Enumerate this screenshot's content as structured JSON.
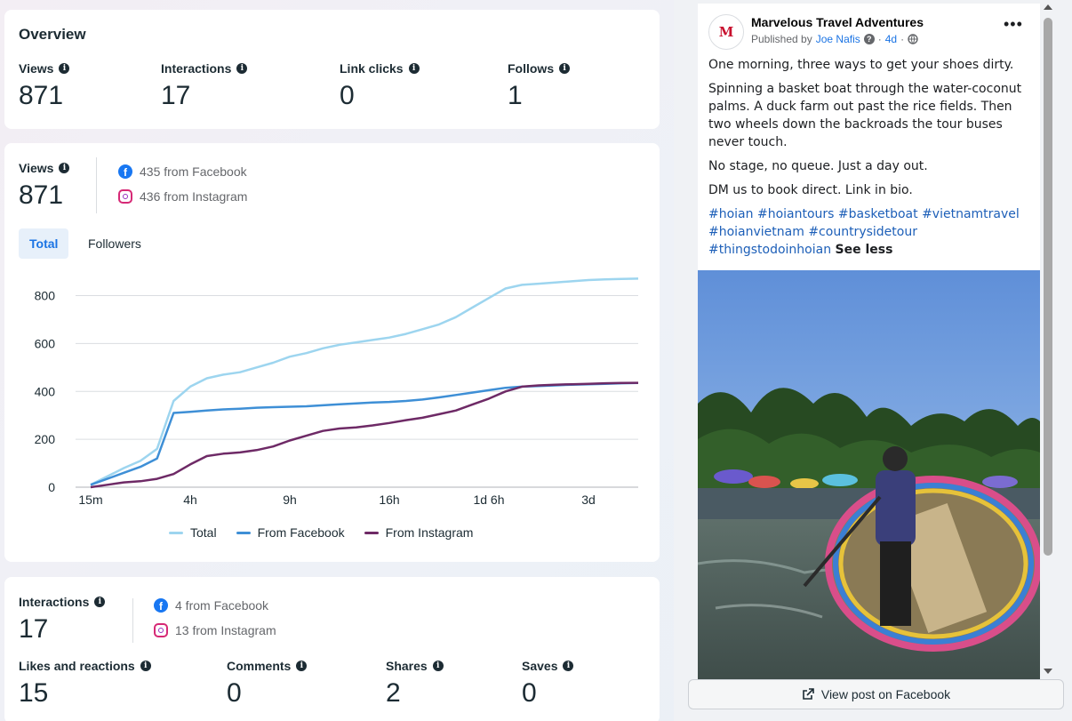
{
  "overview": {
    "title": "Overview",
    "stats": [
      {
        "label": "Views",
        "value": "871"
      },
      {
        "label": "Interactions",
        "value": "17"
      },
      {
        "label": "Link clicks",
        "value": "0"
      },
      {
        "label": "Follows",
        "value": "1"
      }
    ]
  },
  "views_card": {
    "label": "Views",
    "value": "871",
    "from_facebook": "435 from Facebook",
    "from_instagram": "436 from Instagram",
    "tabs": [
      "Total",
      "Followers"
    ],
    "active_tab": "Total"
  },
  "chart_data": {
    "type": "line",
    "x_tick_labels": [
      "15m",
      "4h",
      "9h",
      "16h",
      "1d 6h",
      "3d"
    ],
    "y_ticks": [
      0,
      200,
      400,
      600,
      800
    ],
    "ylim": [
      0,
      880
    ],
    "legend_position": "bottom",
    "grid": true,
    "series": [
      {
        "name": "Total",
        "color": "#9dd5ef",
        "values": [
          10,
          45,
          80,
          110,
          160,
          360,
          420,
          455,
          470,
          480,
          500,
          520,
          545,
          560,
          580,
          595,
          605,
          615,
          625,
          640,
          660,
          680,
          710,
          750,
          790,
          830,
          845,
          850,
          855,
          860,
          865,
          868,
          870,
          871
        ]
      },
      {
        "name": "From Facebook",
        "color": "#3e8fd6",
        "values": [
          10,
          35,
          60,
          85,
          120,
          310,
          315,
          320,
          325,
          328,
          332,
          334,
          336,
          338,
          342,
          346,
          350,
          354,
          356,
          360,
          366,
          375,
          385,
          395,
          405,
          415,
          420,
          422,
          425,
          428,
          430,
          432,
          434,
          435
        ]
      },
      {
        "name": "From Instagram",
        "color": "#6e2a66",
        "values": [
          0,
          10,
          20,
          25,
          35,
          55,
          95,
          130,
          140,
          145,
          155,
          170,
          195,
          215,
          235,
          245,
          250,
          258,
          268,
          280,
          290,
          305,
          320,
          345,
          370,
          400,
          420,
          425,
          428,
          430,
          432,
          434,
          435,
          436
        ]
      }
    ]
  },
  "interactions_card": {
    "label": "Interactions",
    "value": "17",
    "from_facebook": "4 from Facebook",
    "from_instagram": "13 from Instagram",
    "stats": [
      {
        "label": "Likes and reactions",
        "value": "15"
      },
      {
        "label": "Comments",
        "value": "0"
      },
      {
        "label": "Shares",
        "value": "2"
      },
      {
        "label": "Saves",
        "value": "0"
      }
    ]
  },
  "post": {
    "page_name": "Marvelous Travel Adventures",
    "logo_letter": "M",
    "published_by_prefix": "Published by",
    "author": "Joe Nafis",
    "age": "4d",
    "paragraphs": [
      "One morning, three ways to get your shoes dirty.",
      "Spinning a basket boat through the water-coconut palms. A duck farm out past the rice fields. Then two wheels down the backroads the tour buses never touch.",
      "No stage, no queue. Just a day out.",
      "DM us to book direct. Link in bio."
    ],
    "hashtags": "#hoian #hoiantours #basketboat #vietnamtravel #hoianvietnam #countrysidetour #thingstodoinhoian",
    "see_less": "See less",
    "more_icon": "more-options-icon"
  },
  "view_post_button": "View post on Facebook"
}
